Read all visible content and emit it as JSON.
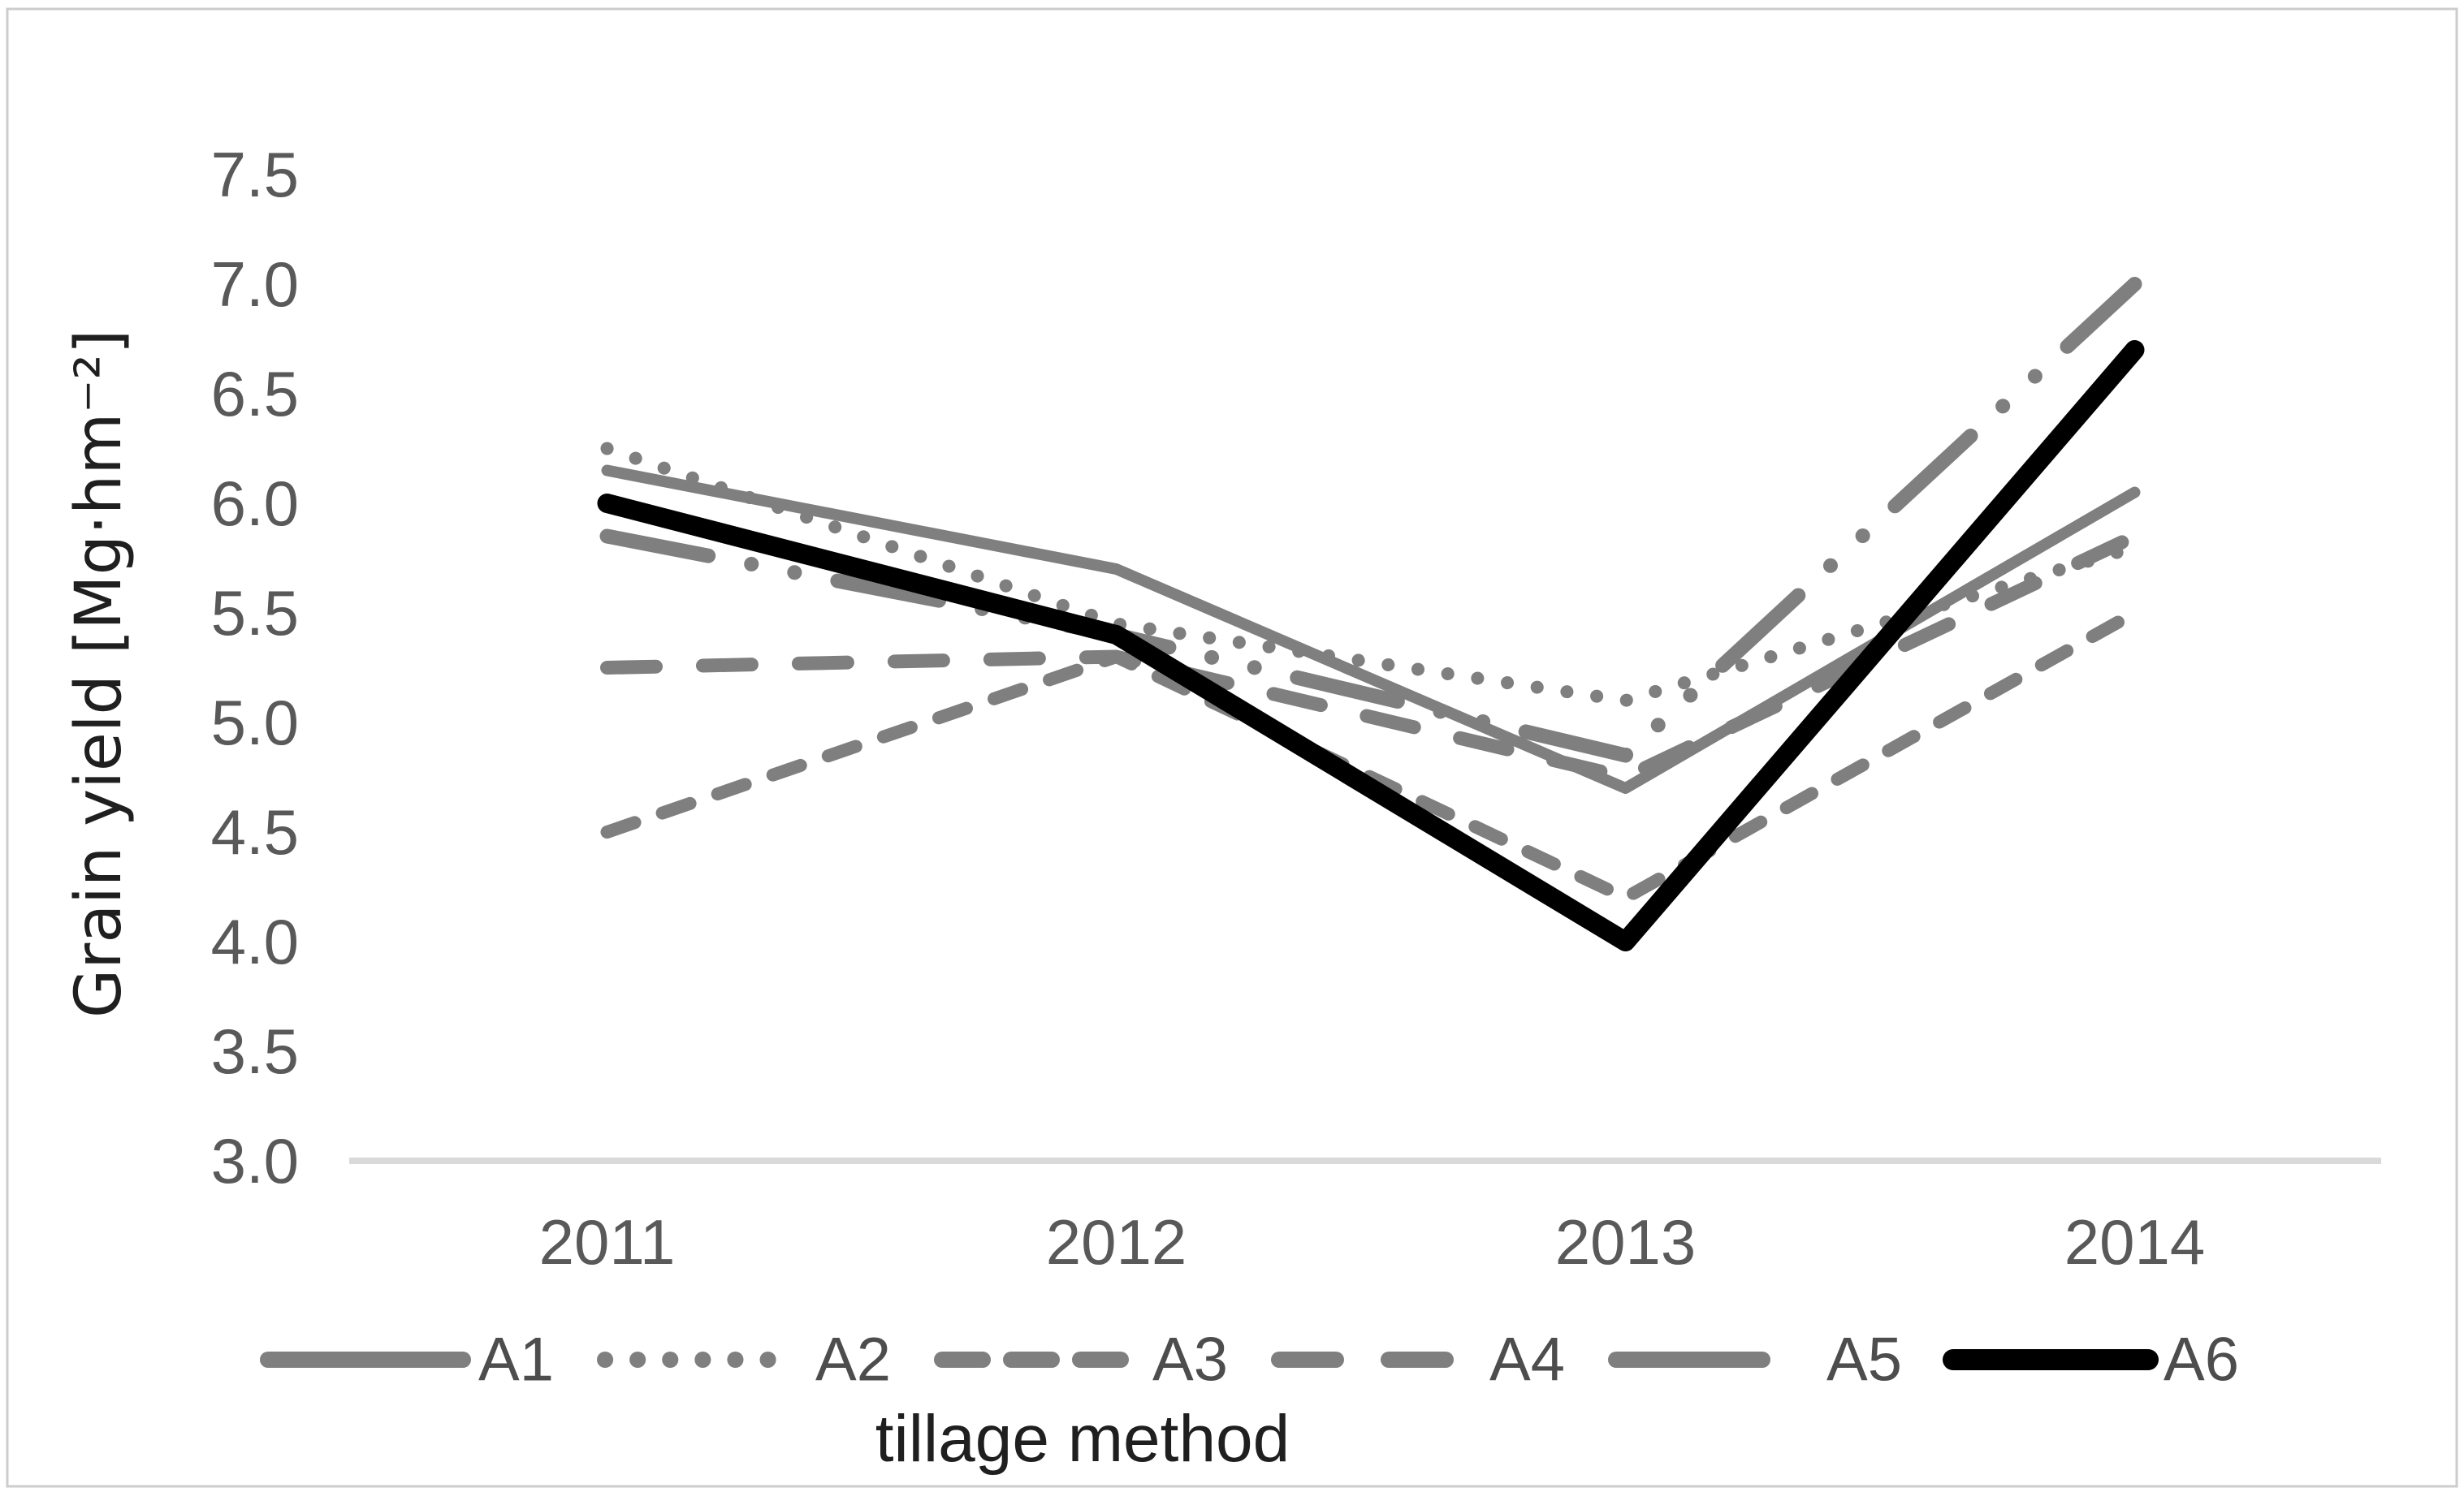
{
  "figure": {
    "background": "#ffffff",
    "border_color": "#cccccc"
  },
  "palette": {
    "line_gray": "#7f7f7f",
    "line_black": "#000000",
    "axis_line": "#d9d9d9",
    "tick_text": "#595959",
    "legend_text": "#4d4d4d",
    "title_text": "#1f1f1f"
  },
  "chart_data": {
    "type": "line",
    "title": "",
    "xlabel": "tillage method",
    "ylabel": "Grain yield [Mg·hm⁻²]",
    "categories": [
      "2011",
      "2012",
      "2013",
      "2014"
    ],
    "y_ticks": [
      "7.5",
      "7.0",
      "6.5",
      "6.0",
      "5.5",
      "5.0",
      "4.5",
      "4.0",
      "3.5",
      "3.0"
    ],
    "ylim": [
      3.0,
      7.5
    ],
    "grid": "baseline-only",
    "legend_position": "bottom",
    "series": [
      {
        "name": "A1",
        "color": "#7f7f7f",
        "style": "solid",
        "width": 14,
        "values": [
          6.15,
          5.7,
          4.7,
          6.05
        ]
      },
      {
        "name": "A2",
        "color": "#7f7f7f",
        "style": "dotted",
        "width": 16,
        "values": [
          6.25,
          5.45,
          5.1,
          5.8
        ]
      },
      {
        "name": "A3",
        "color": "#7f7f7f",
        "style": "dash",
        "width": 16,
        "values": [
          4.5,
          5.3,
          4.2,
          5.5
        ]
      },
      {
        "name": "A4",
        "color": "#7f7f7f",
        "style": "medium-dash",
        "width": 17,
        "values": [
          5.25,
          5.3,
          4.75,
          5.85
        ]
      },
      {
        "name": "A5",
        "color": "#7f7f7f",
        "style": "long-dash-dot-dot",
        "width": 18,
        "values": [
          5.85,
          5.4,
          4.85,
          7.0
        ]
      },
      {
        "name": "A6",
        "color": "#000000",
        "style": "solid",
        "width": 24,
        "values": [
          6.0,
          5.4,
          4.0,
          6.7
        ]
      }
    ]
  }
}
